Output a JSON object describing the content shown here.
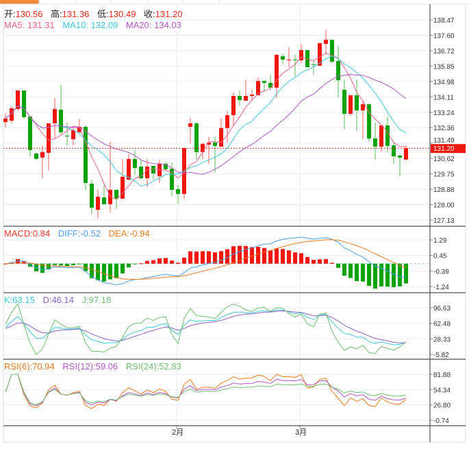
{
  "header": {
    "open_label": "开:",
    "open": "130.56",
    "high_label": "高:",
    "high": "131.36",
    "low_label": "低:",
    "low": "130.49",
    "close_label": "收:",
    "close": "131.20",
    "ma5": "MA5: 131.31",
    "ma10": "MA10: 132.09",
    "ma20": "MA20: 134.03"
  },
  "macd_header": {
    "macd": "MACD:0.84",
    "diff": "DIFF:-0.52",
    "dea": "DEA:-0.94"
  },
  "kdj_header": {
    "k": "K:63.15",
    "d": "D:46.14",
    "j": "J:97.18"
  },
  "rsi_header": {
    "rsi6": "RSI(6):70.94",
    "rsi12": "RSI(12):59.06",
    "rsi24": "RSI(24):52.83"
  },
  "colors": {
    "up": "#f0180c",
    "down": "#0aa30a",
    "ma5": "#f0608c",
    "ma10": "#3cc6da",
    "ma20": "#b455c8",
    "diff": "#4a9ee8",
    "dea": "#f07a1e",
    "k": "#3cc6da",
    "d": "#8e60c8",
    "j": "#6cbf6c",
    "rsi6": "#f07a1e",
    "rsi12": "#b455c8",
    "rsi24": "#6cbf6c"
  },
  "chart_data": {
    "type": "candlestick",
    "last_price": "131.20",
    "x_tick_labels": [
      {
        "index": 27,
        "label": "2月"
      },
      {
        "index": 47,
        "label": "3月"
      }
    ],
    "price_axis": {
      "range": [
        127.13,
        138.47
      ],
      "ticks": [
        "138.47",
        "137.60",
        "136.72",
        "135.85",
        "134.98",
        "134.11",
        "133.24",
        "132.36",
        "131.49",
        "130.62",
        "129.75",
        "128.88",
        "128.00",
        "127.13"
      ]
    },
    "macd_axis": {
      "range": [
        -1.24,
        1.29
      ],
      "ticks": [
        "1.29",
        "0.45",
        "-0.39",
        "-1.24"
      ]
    },
    "kdj_axis": {
      "range": [
        -5.82,
        96.63
      ],
      "ticks": [
        "96.63",
        "62.48",
        "28.33",
        "-5.82"
      ]
    },
    "rsi_axis": {
      "range": [
        -0.74,
        81.88
      ],
      "ticks": [
        "81.88",
        "54.34",
        "26.80",
        "-0.74"
      ]
    },
    "ohlc": [
      [
        132.68,
        132.88,
        133.19,
        132.34
      ],
      [
        132.76,
        133.46,
        133.58,
        132.61
      ],
      [
        133.42,
        134.47,
        134.47,
        133.34
      ],
      [
        134.47,
        132.96,
        134.47,
        132.88
      ],
      [
        133.0,
        131.09,
        133.0,
        130.74
      ],
      [
        130.9,
        130.59,
        130.98,
        130.55
      ],
      [
        130.67,
        130.98,
        131.36,
        129.5
      ],
      [
        130.94,
        132.61,
        132.61,
        129.93
      ],
      [
        132.61,
        133.42,
        134.04,
        131.71
      ],
      [
        133.38,
        132.1,
        134.78,
        131.99
      ],
      [
        131.91,
        131.87,
        132.65,
        131.33
      ],
      [
        131.71,
        132.22,
        132.45,
        131.36
      ],
      [
        132.1,
        132.41,
        132.88,
        132.1
      ],
      [
        132.41,
        129.23,
        132.49,
        128.84
      ],
      [
        129.19,
        127.83,
        129.42,
        127.44
      ],
      [
        127.71,
        128.45,
        128.84,
        127.21
      ],
      [
        128.41,
        128.03,
        129.11,
        127.99
      ],
      [
        128.03,
        128.84,
        131.56,
        127.56
      ],
      [
        128.84,
        128.34,
        128.84,
        127.75
      ],
      [
        128.34,
        129.58,
        130.59,
        128.34
      ],
      [
        129.42,
        130.59,
        130.86,
        129.38
      ],
      [
        130.59,
        130.08,
        131.09,
        129.69
      ],
      [
        130.16,
        129.5,
        130.51,
        129.42
      ],
      [
        129.5,
        130.16,
        130.59,
        129.0
      ],
      [
        130.2,
        129.77,
        130.2,
        129.42
      ],
      [
        129.62,
        130.32,
        130.55,
        129.23
      ],
      [
        130.32,
        130.01,
        130.39,
        129.97
      ],
      [
        130.04,
        128.84,
        130.39,
        128.49
      ],
      [
        128.88,
        128.61,
        129.11,
        128.06
      ],
      [
        128.61,
        131.21,
        131.21,
        128.3
      ],
      [
        132.41,
        132.61,
        132.92,
        131.48
      ],
      [
        132.61,
        130.98,
        132.68,
        130.55
      ],
      [
        130.98,
        131.44,
        131.52,
        130.59
      ],
      [
        131.4,
        131.52,
        131.83,
        130.32
      ],
      [
        131.52,
        131.33,
        131.87,
        129.81
      ],
      [
        131.29,
        132.34,
        132.92,
        131.29
      ],
      [
        132.34,
        133.07,
        133.31,
        131.52
      ],
      [
        133.07,
        134.16,
        134.35,
        132.49
      ],
      [
        134.16,
        133.93,
        134.47,
        133.58
      ],
      [
        133.89,
        134.16,
        135.09,
        133.89
      ],
      [
        134.16,
        134.24,
        134.55,
        133.93
      ],
      [
        134.2,
        135.01,
        135.21,
        134.2
      ],
      [
        135.01,
        134.9,
        135.05,
        134.39
      ],
      [
        134.9,
        134.63,
        135.36,
        134.47
      ],
      [
        134.63,
        136.49,
        136.53,
        134.04
      ],
      [
        136.41,
        136.22,
        136.57,
        135.95
      ],
      [
        136.18,
        136.22,
        136.92,
        135.79
      ],
      [
        136.22,
        136.18,
        136.49,
        135.25
      ],
      [
        136.18,
        136.76,
        137.11,
        136.02
      ],
      [
        136.76,
        135.79,
        136.76,
        135.79
      ],
      [
        135.95,
        135.91,
        136.18,
        135.36
      ],
      [
        135.87,
        137.15,
        137.15,
        135.87
      ],
      [
        137.11,
        137.34,
        137.93,
        136.53
      ],
      [
        137.34,
        136.1,
        137.34,
        135.99
      ],
      [
        136.14,
        135.05,
        136.99,
        134.08
      ],
      [
        134.51,
        133.15,
        135.05,
        132.26
      ],
      [
        133.15,
        134.2,
        134.2,
        133.03
      ],
      [
        134.2,
        133.34,
        135.09,
        132.18
      ],
      [
        133.34,
        133.69,
        133.89,
        131.71
      ],
      [
        133.69,
        131.75,
        133.73,
        131.56
      ],
      [
        131.75,
        131.29,
        132.65,
        130.55
      ],
      [
        131.29,
        132.49,
        132.49,
        131.01
      ],
      [
        132.49,
        131.33,
        133.0,
        130.98
      ],
      [
        131.36,
        130.74,
        131.6,
        130.32
      ],
      [
        130.78,
        130.67,
        130.86,
        129.62
      ],
      [
        130.56,
        131.2,
        131.36,
        130.49
      ]
    ]
  }
}
